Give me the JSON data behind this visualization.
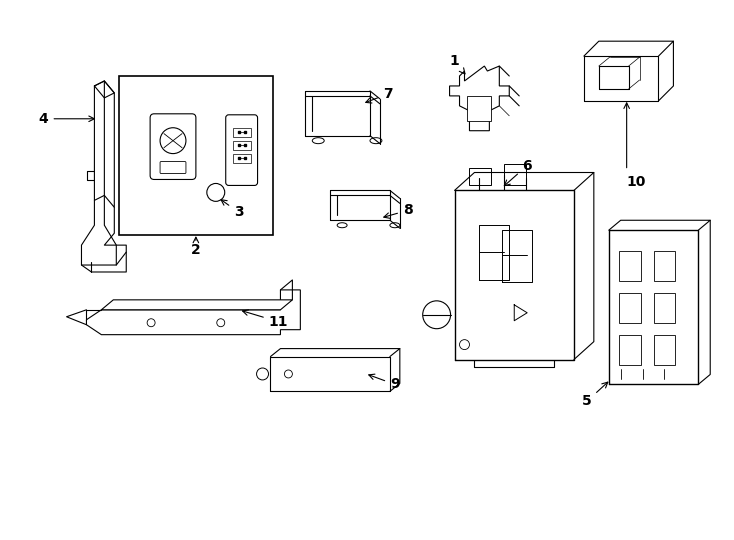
{
  "title": "",
  "background_color": "#ffffff",
  "line_color": "#000000",
  "fig_width": 7.34,
  "fig_height": 5.4,
  "dpi": 100
}
